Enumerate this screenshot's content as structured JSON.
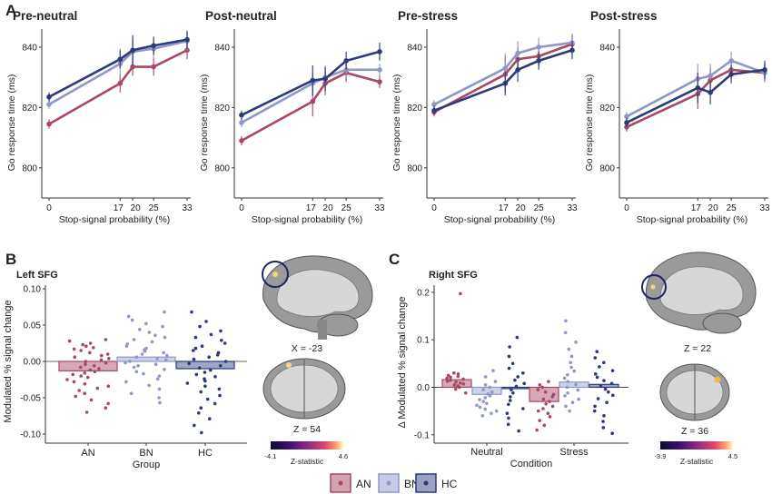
{
  "panel_labels": {
    "a": "A",
    "b": "B",
    "c": "C"
  },
  "palette": {
    "AN": "#a84865",
    "BN": "#8f97c7",
    "HC": "#2c3a78"
  },
  "chart_data": [
    {
      "id": "pre-neutral",
      "type": "line",
      "title": "Pre-neutral",
      "xlabel": "Stop-signal probability (%)",
      "ylabel": "Go response time (ms)",
      "x": [
        0,
        17,
        20,
        25,
        33
      ],
      "ylim": [
        790,
        846
      ],
      "yticks": [
        800,
        820,
        840
      ],
      "series": [
        {
          "name": "AN",
          "values": [
            814.5,
            828,
            833.5,
            833.5,
            839
          ],
          "err": [
            1.5,
            3,
            3,
            3,
            3
          ]
        },
        {
          "name": "BN",
          "values": [
            821,
            834.5,
            838.5,
            839.5,
            842
          ],
          "err": [
            1.5,
            5,
            4,
            3,
            3
          ]
        },
        {
          "name": "HC",
          "values": [
            823.5,
            836,
            839,
            840.5,
            842.5
          ],
          "err": [
            1.5,
            3,
            5,
            3,
            3
          ]
        }
      ]
    },
    {
      "id": "post-neutral",
      "type": "line",
      "title": "Post-neutral",
      "xlabel": "Stop-signal probability (%)",
      "ylabel": "Go response time (ms)",
      "x": [
        0,
        17,
        20,
        25,
        33
      ],
      "ylim": [
        790,
        846
      ],
      "yticks": [
        800,
        820,
        840
      ],
      "series": [
        {
          "name": "AN",
          "values": [
            809,
            822,
            828,
            831.5,
            828.5
          ],
          "err": [
            1.5,
            5,
            4,
            3,
            2
          ]
        },
        {
          "name": "BN",
          "values": [
            815,
            828,
            830,
            832.5,
            832.5
          ],
          "err": [
            1.5,
            4,
            4,
            3,
            2
          ]
        },
        {
          "name": "HC",
          "values": [
            817.5,
            829,
            829.5,
            835.5,
            838.5
          ],
          "err": [
            1.5,
            5,
            4,
            3,
            3
          ]
        }
      ]
    },
    {
      "id": "pre-stress",
      "type": "line",
      "title": "Pre-stress",
      "xlabel": "Stop-signal probability (%)",
      "ylabel": "Go response time (ms)",
      "x": [
        0,
        17,
        20,
        25,
        33
      ],
      "ylim": [
        790,
        846
      ],
      "yticks": [
        800,
        820,
        840
      ],
      "series": [
        {
          "name": "AN",
          "values": [
            818.5,
            831,
            836,
            837,
            841
          ],
          "err": [
            1.5,
            6,
            4,
            3,
            3
          ]
        },
        {
          "name": "BN",
          "values": [
            821,
            833,
            838,
            840,
            841.5
          ],
          "err": [
            1.5,
            5,
            4,
            3,
            3
          ]
        },
        {
          "name": "HC",
          "values": [
            819,
            828,
            832.5,
            835.5,
            839
          ],
          "err": [
            1.5,
            4,
            4,
            3,
            3
          ]
        }
      ]
    },
    {
      "id": "post-stress",
      "type": "line",
      "title": "Post-stress",
      "xlabel": "Stop-signal probability (%)",
      "ylabel": "Go response time (ms)",
      "x": [
        0,
        17,
        20,
        25,
        33
      ],
      "ylim": [
        790,
        846
      ],
      "yticks": [
        800,
        820,
        840
      ],
      "series": [
        {
          "name": "AN",
          "values": [
            813.5,
            824.5,
            829,
            832.5,
            831.5
          ],
          "err": [
            1.5,
            5,
            4,
            3,
            3
          ]
        },
        {
          "name": "BN",
          "values": [
            817,
            829.5,
            830.5,
            835.5,
            831.5
          ],
          "err": [
            1.5,
            5,
            4,
            3,
            3
          ]
        },
        {
          "name": "HC",
          "values": [
            815,
            826.5,
            825,
            831,
            832.5
          ],
          "err": [
            1.5,
            5,
            4,
            3,
            3
          ]
        }
      ]
    },
    {
      "id": "left-sfg",
      "type": "bar",
      "title": "Left SFG",
      "xlabel": "Group",
      "ylabel": "Modulated % signal change",
      "categories": [
        "AN",
        "BN",
        "HC"
      ],
      "values": [
        -0.013,
        0.006,
        -0.01
      ],
      "ylim": [
        -0.105,
        0.105
      ],
      "yticks": [
        -0.1,
        -0.05,
        0.0,
        0.05,
        0.1
      ],
      "ytick_labels": [
        "-0.10",
        "-0.05",
        "0.00",
        "0.05",
        "0.10"
      ],
      "points": {
        "AN": [
          0.03,
          0.028,
          0.025,
          0.023,
          0.021,
          0.019,
          0.017,
          0.015,
          0.012,
          0.01,
          0.008,
          0.006,
          0.004,
          0.002,
          0.0,
          -0.002,
          -0.004,
          -0.006,
          -0.008,
          -0.01,
          -0.012,
          -0.014,
          -0.016,
          -0.018,
          -0.02,
          -0.022,
          -0.025,
          -0.028,
          -0.031,
          -0.034,
          -0.037,
          -0.04,
          -0.044,
          -0.048,
          -0.053,
          -0.058,
          -0.064,
          -0.07
        ],
        "BN": [
          0.068,
          0.062,
          0.057,
          0.052,
          0.048,
          0.044,
          0.04,
          0.036,
          0.033,
          0.03,
          0.027,
          0.024,
          0.021,
          0.018,
          0.016,
          0.014,
          0.012,
          0.01,
          0.008,
          0.006,
          0.004,
          0.002,
          0.0,
          -0.002,
          -0.004,
          -0.006,
          -0.008,
          -0.011,
          -0.014,
          -0.017,
          -0.02,
          -0.024,
          -0.028,
          -0.033,
          -0.038,
          -0.044,
          -0.05,
          -0.057
        ],
        "HC": [
          0.068,
          0.055,
          0.048,
          0.042,
          0.037,
          0.033,
          0.029,
          0.025,
          0.021,
          0.018,
          0.015,
          0.012,
          0.009,
          0.006,
          0.003,
          0.0,
          -0.003,
          -0.006,
          -0.009,
          -0.012,
          -0.015,
          -0.018,
          -0.021,
          -0.024,
          -0.027,
          -0.03,
          -0.034,
          -0.038,
          -0.042,
          -0.047,
          -0.052,
          -0.058,
          -0.064,
          -0.071,
          -0.079,
          -0.088,
          -0.098
        ]
      }
    },
    {
      "id": "right-sfg",
      "type": "bar",
      "title": "Right SFG",
      "xlabel": "Condition",
      "ylabel": "Δ Modulated % signal change",
      "categories": [
        "Neutral",
        "Stress"
      ],
      "series": [
        {
          "name": "AN",
          "values": [
            0.016,
            -0.03
          ]
        },
        {
          "name": "BN",
          "values": [
            -0.015,
            0.011
          ]
        },
        {
          "name": "HC",
          "values": [
            0.0,
            0.006
          ]
        }
      ],
      "ylim": [
        -0.11,
        0.215
      ],
      "yticks": [
        -0.1,
        0.0,
        0.1,
        0.2
      ],
      "ytick_labels": [
        "-0.1",
        "0.0",
        "0.1",
        "0.2"
      ],
      "points": {
        "Neutral": {
          "AN": [
            0.197,
            0.03,
            0.028,
            0.025,
            0.023,
            0.021,
            0.019,
            0.017,
            0.015,
            0.013,
            0.011,
            0.009,
            0.007,
            0.005,
            0.003,
            0.0,
            -0.004,
            -0.012
          ],
          "BN": [
            0.035,
            0.022,
            0.012,
            0.005,
            0.0,
            -0.005,
            -0.01,
            -0.014,
            -0.018,
            -0.022,
            -0.026,
            -0.03,
            -0.034,
            -0.038,
            -0.042,
            -0.046,
            -0.05,
            -0.055,
            -0.06
          ],
          "HC": [
            0.105,
            0.085,
            0.065,
            0.05,
            0.04,
            0.03,
            0.022,
            0.015,
            0.008,
            0.002,
            -0.005,
            -0.012,
            -0.02,
            -0.028,
            -0.036,
            -0.045,
            -0.055,
            -0.065,
            -0.078,
            -0.092
          ]
        },
        "Stress": {
          "AN": [
            0.012,
            0.005,
            0.0,
            -0.005,
            -0.01,
            -0.015,
            -0.02,
            -0.025,
            -0.03,
            -0.035,
            -0.04,
            -0.045,
            -0.05,
            -0.055,
            -0.062,
            -0.07,
            -0.08,
            -0.09
          ],
          "BN": [
            0.14,
            0.115,
            0.095,
            0.08,
            0.065,
            0.052,
            0.042,
            0.034,
            0.026,
            0.019,
            0.012,
            0.006,
            0.0,
            -0.006,
            -0.012,
            -0.018,
            -0.025,
            -0.032,
            -0.04,
            -0.05
          ],
          "HC": [
            0.075,
            0.062,
            0.052,
            0.043,
            0.035,
            0.028,
            0.021,
            0.014,
            0.008,
            0.002,
            -0.004,
            -0.01,
            -0.017,
            -0.024,
            -0.032,
            -0.04,
            -0.05,
            -0.06,
            -0.072,
            -0.085,
            -0.097
          ]
        }
      }
    }
  ],
  "brain_b": {
    "sagittal_label": "X = -23",
    "axial_label": "Z = 54",
    "colorbar_min": "-4.1",
    "colorbar_max": "4.6",
    "colorbar_title": "Z-statistic"
  },
  "brain_c": {
    "sagittal_label": "Z = 22",
    "axial_label": "Z = 36",
    "colorbar_min": "-3.9",
    "colorbar_max": "4.5",
    "colorbar_title": "Z-statistic"
  },
  "legend": {
    "items": [
      "AN",
      "BN",
      "HC"
    ]
  }
}
